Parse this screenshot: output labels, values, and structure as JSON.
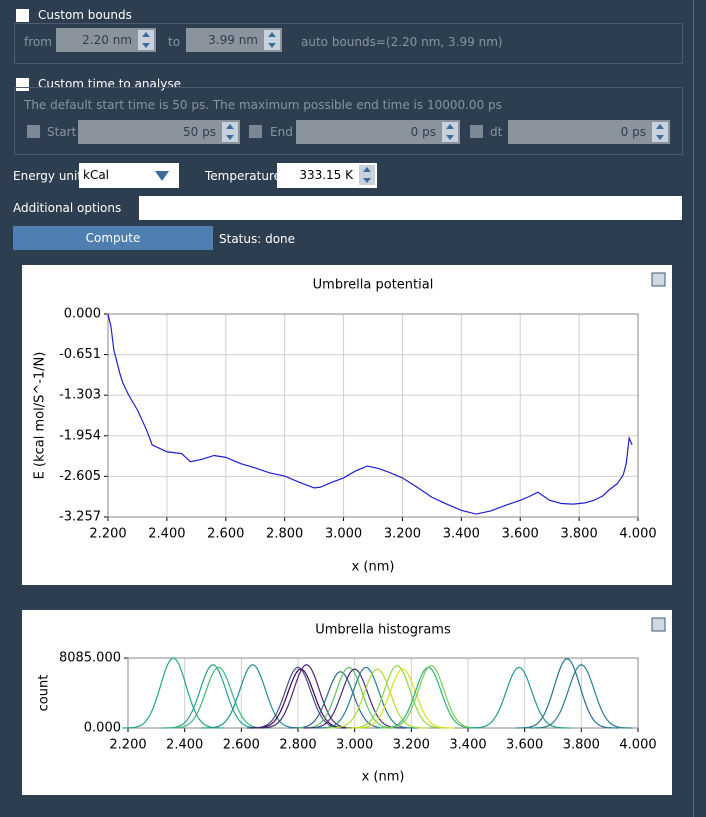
{
  "bounds": {
    "label": "Custom bounds",
    "from_label": "from",
    "from": "2.20 nm",
    "to_label": "to",
    "to": "3.99 nm",
    "auto": "auto bounds=(2.20 nm, 3.99 nm)"
  },
  "time": {
    "label": "Custom time to analyse",
    "note": "The default start time is 50 ps. The maximum possible end time is  10000.00 ps",
    "start_label": "Start",
    "start": "50 ps",
    "end_label": "End",
    "end": "0 ps",
    "dt_label": "dt",
    "dt": "0 ps"
  },
  "energy_unit_label": "Energy unit",
  "energy_unit": "kCal",
  "temperature_label": "Temperature",
  "temperature": "333.15 K",
  "additional_options_label": "Additional options",
  "compute": "Compute",
  "status": "Status: done",
  "chart_data": [
    {
      "type": "line",
      "title": "Umbrella potential",
      "xlabel": "x (nm)",
      "ylabel": "E (kcal mol/S^-1/N)",
      "color": "#1f1fd0",
      "grid": true,
      "xlim": [
        2.2,
        4.0
      ],
      "ylim": [
        -3.257,
        0
      ],
      "xticks": [
        {
          "value": 2.2,
          "label": "2.200"
        },
        {
          "value": 2.4,
          "label": "2.400"
        },
        {
          "value": 2.6,
          "label": "2.600"
        },
        {
          "value": 2.8,
          "label": "2.800"
        },
        {
          "value": 3.0,
          "label": "3.000"
        },
        {
          "value": 3.2,
          "label": "3.200"
        },
        {
          "value": 3.4,
          "label": "3.400"
        },
        {
          "value": 3.6,
          "label": "3.600"
        },
        {
          "value": 3.8,
          "label": "3.800"
        },
        {
          "value": 4.0,
          "label": "4.000"
        }
      ],
      "yticks": [
        {
          "value": 0,
          "label": "0.000"
        },
        {
          "value": -0.651,
          "label": "-0.651"
        },
        {
          "value": -1.303,
          "label": "-1.303"
        },
        {
          "value": -1.954,
          "label": "-1.954"
        },
        {
          "value": -2.605,
          "label": "-2.605"
        },
        {
          "value": -3.257,
          "label": "-3.257"
        }
      ],
      "x": [
        2.2,
        2.21,
        2.22,
        2.24,
        2.25,
        2.27,
        2.3,
        2.33,
        2.35,
        2.4,
        2.45,
        2.48,
        2.52,
        2.56,
        2.6,
        2.65,
        2.7,
        2.75,
        2.8,
        2.85,
        2.9,
        2.92,
        2.96,
        3.0,
        3.04,
        3.08,
        3.12,
        3.16,
        3.2,
        3.25,
        3.3,
        3.35,
        3.4,
        3.45,
        3.5,
        3.55,
        3.6,
        3.63,
        3.66,
        3.7,
        3.74,
        3.78,
        3.82,
        3.85,
        3.88,
        3.9,
        3.93,
        3.95,
        3.96,
        3.97,
        3.98
      ],
      "values": [
        0,
        -0.2,
        -0.58,
        -0.95,
        -1.1,
        -1.3,
        -1.54,
        -1.85,
        -2.1,
        -2.21,
        -2.24,
        -2.37,
        -2.33,
        -2.27,
        -2.3,
        -2.4,
        -2.47,
        -2.55,
        -2.6,
        -2.7,
        -2.79,
        -2.78,
        -2.7,
        -2.63,
        -2.52,
        -2.44,
        -2.48,
        -2.55,
        -2.63,
        -2.78,
        -2.94,
        -3.05,
        -3.15,
        -3.21,
        -3.16,
        -3.07,
        -2.99,
        -2.93,
        -2.86,
        -2.99,
        -3.04,
        -3.05,
        -3.03,
        -2.99,
        -2.92,
        -2.83,
        -2.72,
        -2.58,
        -2.4,
        -1.99,
        -2.1
      ]
    },
    {
      "type": "histogram",
      "title": "Umbrella histograms",
      "xlabel": "x (nm)",
      "ylabel": "count",
      "grid": true,
      "xlim": [
        2.2,
        4.0
      ],
      "ylim": [
        0,
        8085
      ],
      "xticks": [
        {
          "value": 2.2,
          "label": "2.200"
        },
        {
          "value": 2.4,
          "label": "2.400"
        },
        {
          "value": 2.6,
          "label": "2.600"
        },
        {
          "value": 2.8,
          "label": "2.800"
        },
        {
          "value": 3.0,
          "label": "3.000"
        },
        {
          "value": 3.2,
          "label": "3.200"
        },
        {
          "value": 3.4,
          "label": "3.400"
        },
        {
          "value": 3.6,
          "label": "3.600"
        },
        {
          "value": 3.8,
          "label": "3.800"
        },
        {
          "value": 4.0,
          "label": "4.000"
        }
      ],
      "yticks": [
        {
          "value": 0,
          "label": "0.000"
        },
        {
          "value": 8085,
          "label": "8085.000"
        }
      ],
      "series": [
        {
          "color": "#22a884",
          "center": 2.36,
          "sigma": 0.045,
          "height": 8085
        },
        {
          "color": "#2a9d8f",
          "center": 2.5,
          "sigma": 0.045,
          "height": 7300
        },
        {
          "color": "#3cbb75",
          "center": 2.52,
          "sigma": 0.045,
          "height": 7000
        },
        {
          "color": "#21918c",
          "center": 2.64,
          "sigma": 0.045,
          "height": 7300
        },
        {
          "color": "#3b528b",
          "center": 2.8,
          "sigma": 0.045,
          "height": 7000
        },
        {
          "color": "#440154",
          "center": 2.81,
          "sigma": 0.045,
          "height": 6800
        },
        {
          "color": "#482878",
          "center": 2.83,
          "sigma": 0.045,
          "height": 7300
        },
        {
          "color": "#31688e",
          "center": 2.95,
          "sigma": 0.045,
          "height": 6500
        },
        {
          "color": "#5ec962",
          "center": 2.98,
          "sigma": 0.045,
          "height": 7000
        },
        {
          "color": "#472d7b",
          "center": 3.0,
          "sigma": 0.045,
          "height": 6800
        },
        {
          "color": "#26828e",
          "center": 3.04,
          "sigma": 0.045,
          "height": 7000
        },
        {
          "color": "#addc30",
          "center": 3.08,
          "sigma": 0.045,
          "height": 6800
        },
        {
          "color": "#90d743",
          "center": 3.15,
          "sigma": 0.045,
          "height": 7200
        },
        {
          "color": "#d8e219",
          "center": 3.17,
          "sigma": 0.045,
          "height": 6800
        },
        {
          "color": "#2db27d",
          "center": 3.26,
          "sigma": 0.045,
          "height": 7000
        },
        {
          "color": "#7ad151",
          "center": 3.27,
          "sigma": 0.045,
          "height": 7200
        },
        {
          "color": "#1f9e89",
          "center": 3.58,
          "sigma": 0.045,
          "height": 7000
        },
        {
          "color": "#2c728e",
          "center": 3.75,
          "sigma": 0.045,
          "height": 8000
        },
        {
          "color": "#277f8e",
          "center": 3.8,
          "sigma": 0.045,
          "height": 7300
        }
      ]
    }
  ]
}
